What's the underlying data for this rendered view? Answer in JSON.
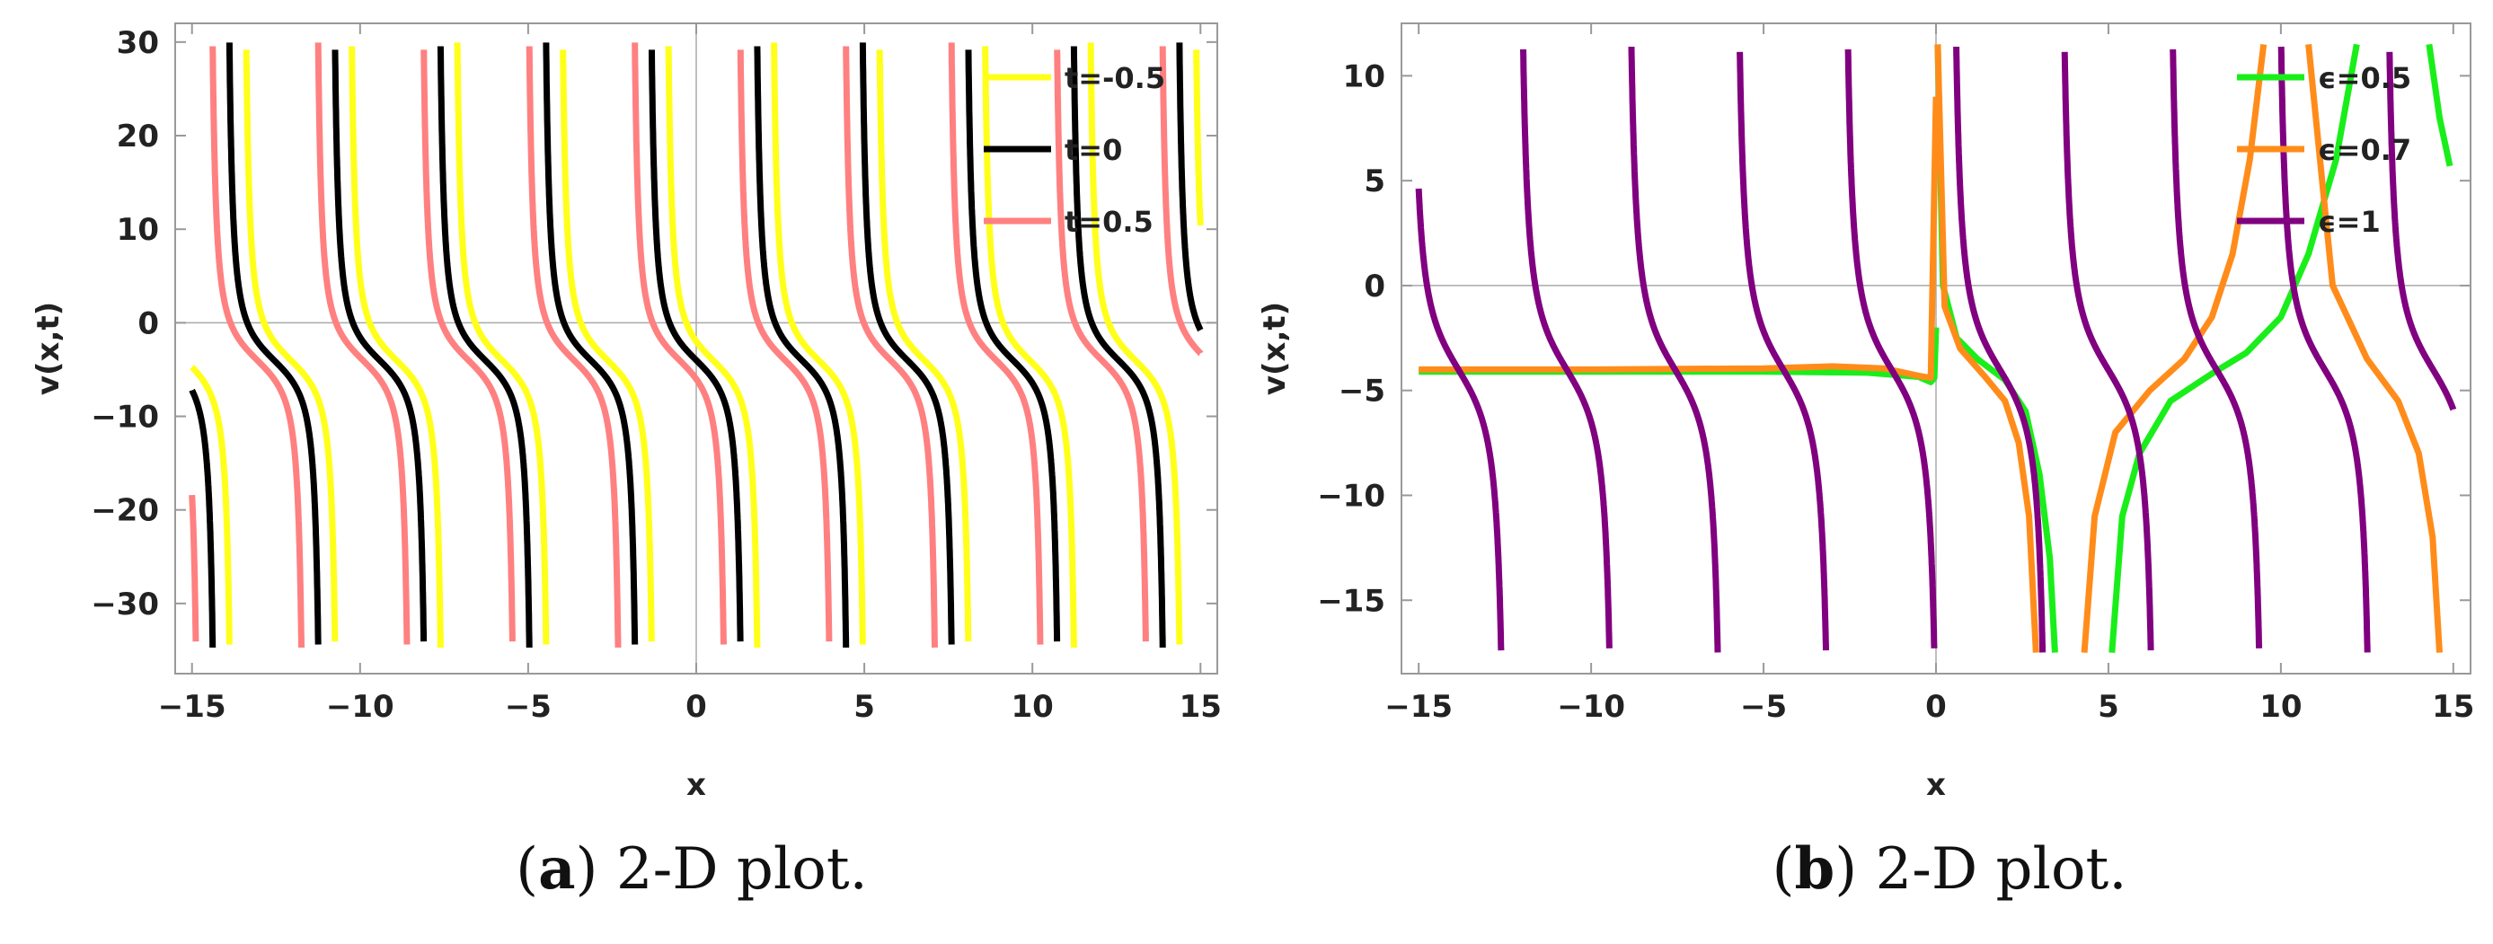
{
  "captions": [
    {
      "label": "a",
      "text": " 2-D plot."
    },
    {
      "label": "b",
      "text": " 2-D plot."
    }
  ],
  "chart_data": [
    {
      "type": "line",
      "panel": "a",
      "title": "",
      "xlabel": "x",
      "ylabel": "v(x,t)",
      "xlim": [
        -15.5,
        15.5
      ],
      "ylim": [
        -37.5,
        32
      ],
      "xticks": [
        -15,
        -10,
        -5,
        0,
        5,
        10,
        15
      ],
      "yticks": [
        -30,
        -20,
        -10,
        0,
        10,
        20,
        30
      ],
      "tick_labels_x": [
        "−15",
        "−10",
        "−5",
        "0",
        "5",
        "10",
        "15"
      ],
      "tick_labels_y": [
        "−30",
        "−20",
        "−10",
        "0",
        "10",
        "20",
        "30"
      ],
      "clip_y": [
        -35,
        30
      ],
      "model": {
        "offset": -4,
        "amplitude": 1.2,
        "period": 6.28,
        "shift_per_t": 1.0
      },
      "legend_position": "top-right",
      "series": [
        {
          "name": "t=-0.5",
          "t": -0.5,
          "color": "#ffff1a"
        },
        {
          "name": "t=0",
          "t": 0,
          "color": "#000000"
        },
        {
          "name": "t=0.5",
          "t": 0.5,
          "color": "#ff8080"
        }
      ]
    },
    {
      "type": "line",
      "panel": "b",
      "title": "",
      "xlabel": "x",
      "ylabel": "v(x,t)",
      "xlim": [
        -15.5,
        15.5
      ],
      "ylim": [
        -18.5,
        12.5
      ],
      "xticks": [
        -15,
        -10,
        -5,
        0,
        5,
        10,
        15
      ],
      "yticks": [
        -15,
        -10,
        -5,
        0,
        5,
        10
      ],
      "tick_labels_x": [
        "−15",
        "−10",
        "−5",
        "0",
        "5",
        "10",
        "15"
      ],
      "tick_labels_y": [
        "−15",
        "−10",
        "−5",
        "0",
        "5",
        "10"
      ],
      "clip_y": [
        -17.5,
        11.5
      ],
      "legend_position": "top-right",
      "series": [
        {
          "name": "ϵ=0.5",
          "color": "#1aee1a",
          "points": [
            [
              -15,
              -4.1
            ],
            [
              -10,
              -4.1
            ],
            [
              -5,
              -4.1
            ],
            [
              -2,
              -4.15
            ],
            [
              -0.5,
              -4.35
            ],
            [
              -0.15,
              -4.6
            ],
            [
              -0.05,
              -4.4
            ],
            [
              0,
              -2
            ]
          ],
          "points2": [
            [
              0.05,
              11.5
            ],
            [
              0.2,
              0
            ],
            [
              0.6,
              -2.5
            ],
            [
              1.2,
              -3.5
            ],
            [
              2.0,
              -4.5
            ],
            [
              2.6,
              -6
            ],
            [
              3.0,
              -9
            ],
            [
              3.3,
              -13
            ],
            [
              3.45,
              -17.5
            ]
          ],
          "points3": [
            [
              5.1,
              -17.5
            ],
            [
              5.4,
              -11
            ],
            [
              5.9,
              -8
            ],
            [
              6.8,
              -5.5
            ],
            [
              8.0,
              -4.2
            ],
            [
              9.0,
              -3.2
            ],
            [
              10.0,
              -1.5
            ],
            [
              10.8,
              1.5
            ],
            [
              11.6,
              6
            ],
            [
              12.2,
              11.5
            ]
          ],
          "points4": [
            [
              14.3,
              11.5
            ],
            [
              14.6,
              8
            ],
            [
              14.9,
              5.7
            ]
          ]
        },
        {
          "name": "ϵ=0.7",
          "color": "#ff8c1a",
          "points": [
            [
              -15,
              -4.0
            ],
            [
              -10,
              -4.0
            ],
            [
              -5,
              -3.95
            ],
            [
              -3,
              -3.85
            ],
            [
              -1.5,
              -3.95
            ],
            [
              -0.5,
              -4.3
            ],
            [
              -0.15,
              -4.4
            ],
            [
              0,
              9
            ]
          ],
          "points2": [
            [
              0.05,
              11.5
            ],
            [
              0.25,
              -1
            ],
            [
              0.7,
              -3
            ],
            [
              1.4,
              -4.3
            ],
            [
              2.0,
              -5.5
            ],
            [
              2.4,
              -7.5
            ],
            [
              2.7,
              -11
            ],
            [
              2.9,
              -17.5
            ]
          ],
          "points3": [
            [
              4.3,
              -17.5
            ],
            [
              4.6,
              -11
            ],
            [
              5.2,
              -7
            ],
            [
              6.2,
              -5
            ],
            [
              7.2,
              -3.5
            ],
            [
              8.0,
              -1.5
            ],
            [
              8.6,
              1.5
            ],
            [
              9.1,
              6
            ],
            [
              9.5,
              11.5
            ]
          ],
          "points4": [
            [
              10.8,
              11.5
            ],
            [
              11.5,
              0
            ],
            [
              12.5,
              -3.5
            ],
            [
              13.4,
              -5.5
            ],
            [
              14.0,
              -8
            ],
            [
              14.4,
              -12
            ],
            [
              14.6,
              -17.5
            ]
          ]
        },
        {
          "name": "ϵ=1",
          "color": "#800080",
          "periodic": {
            "offset": -4,
            "amplitude": 1.1,
            "period": 6.28,
            "phase": 1.85
          }
        }
      ]
    }
  ]
}
